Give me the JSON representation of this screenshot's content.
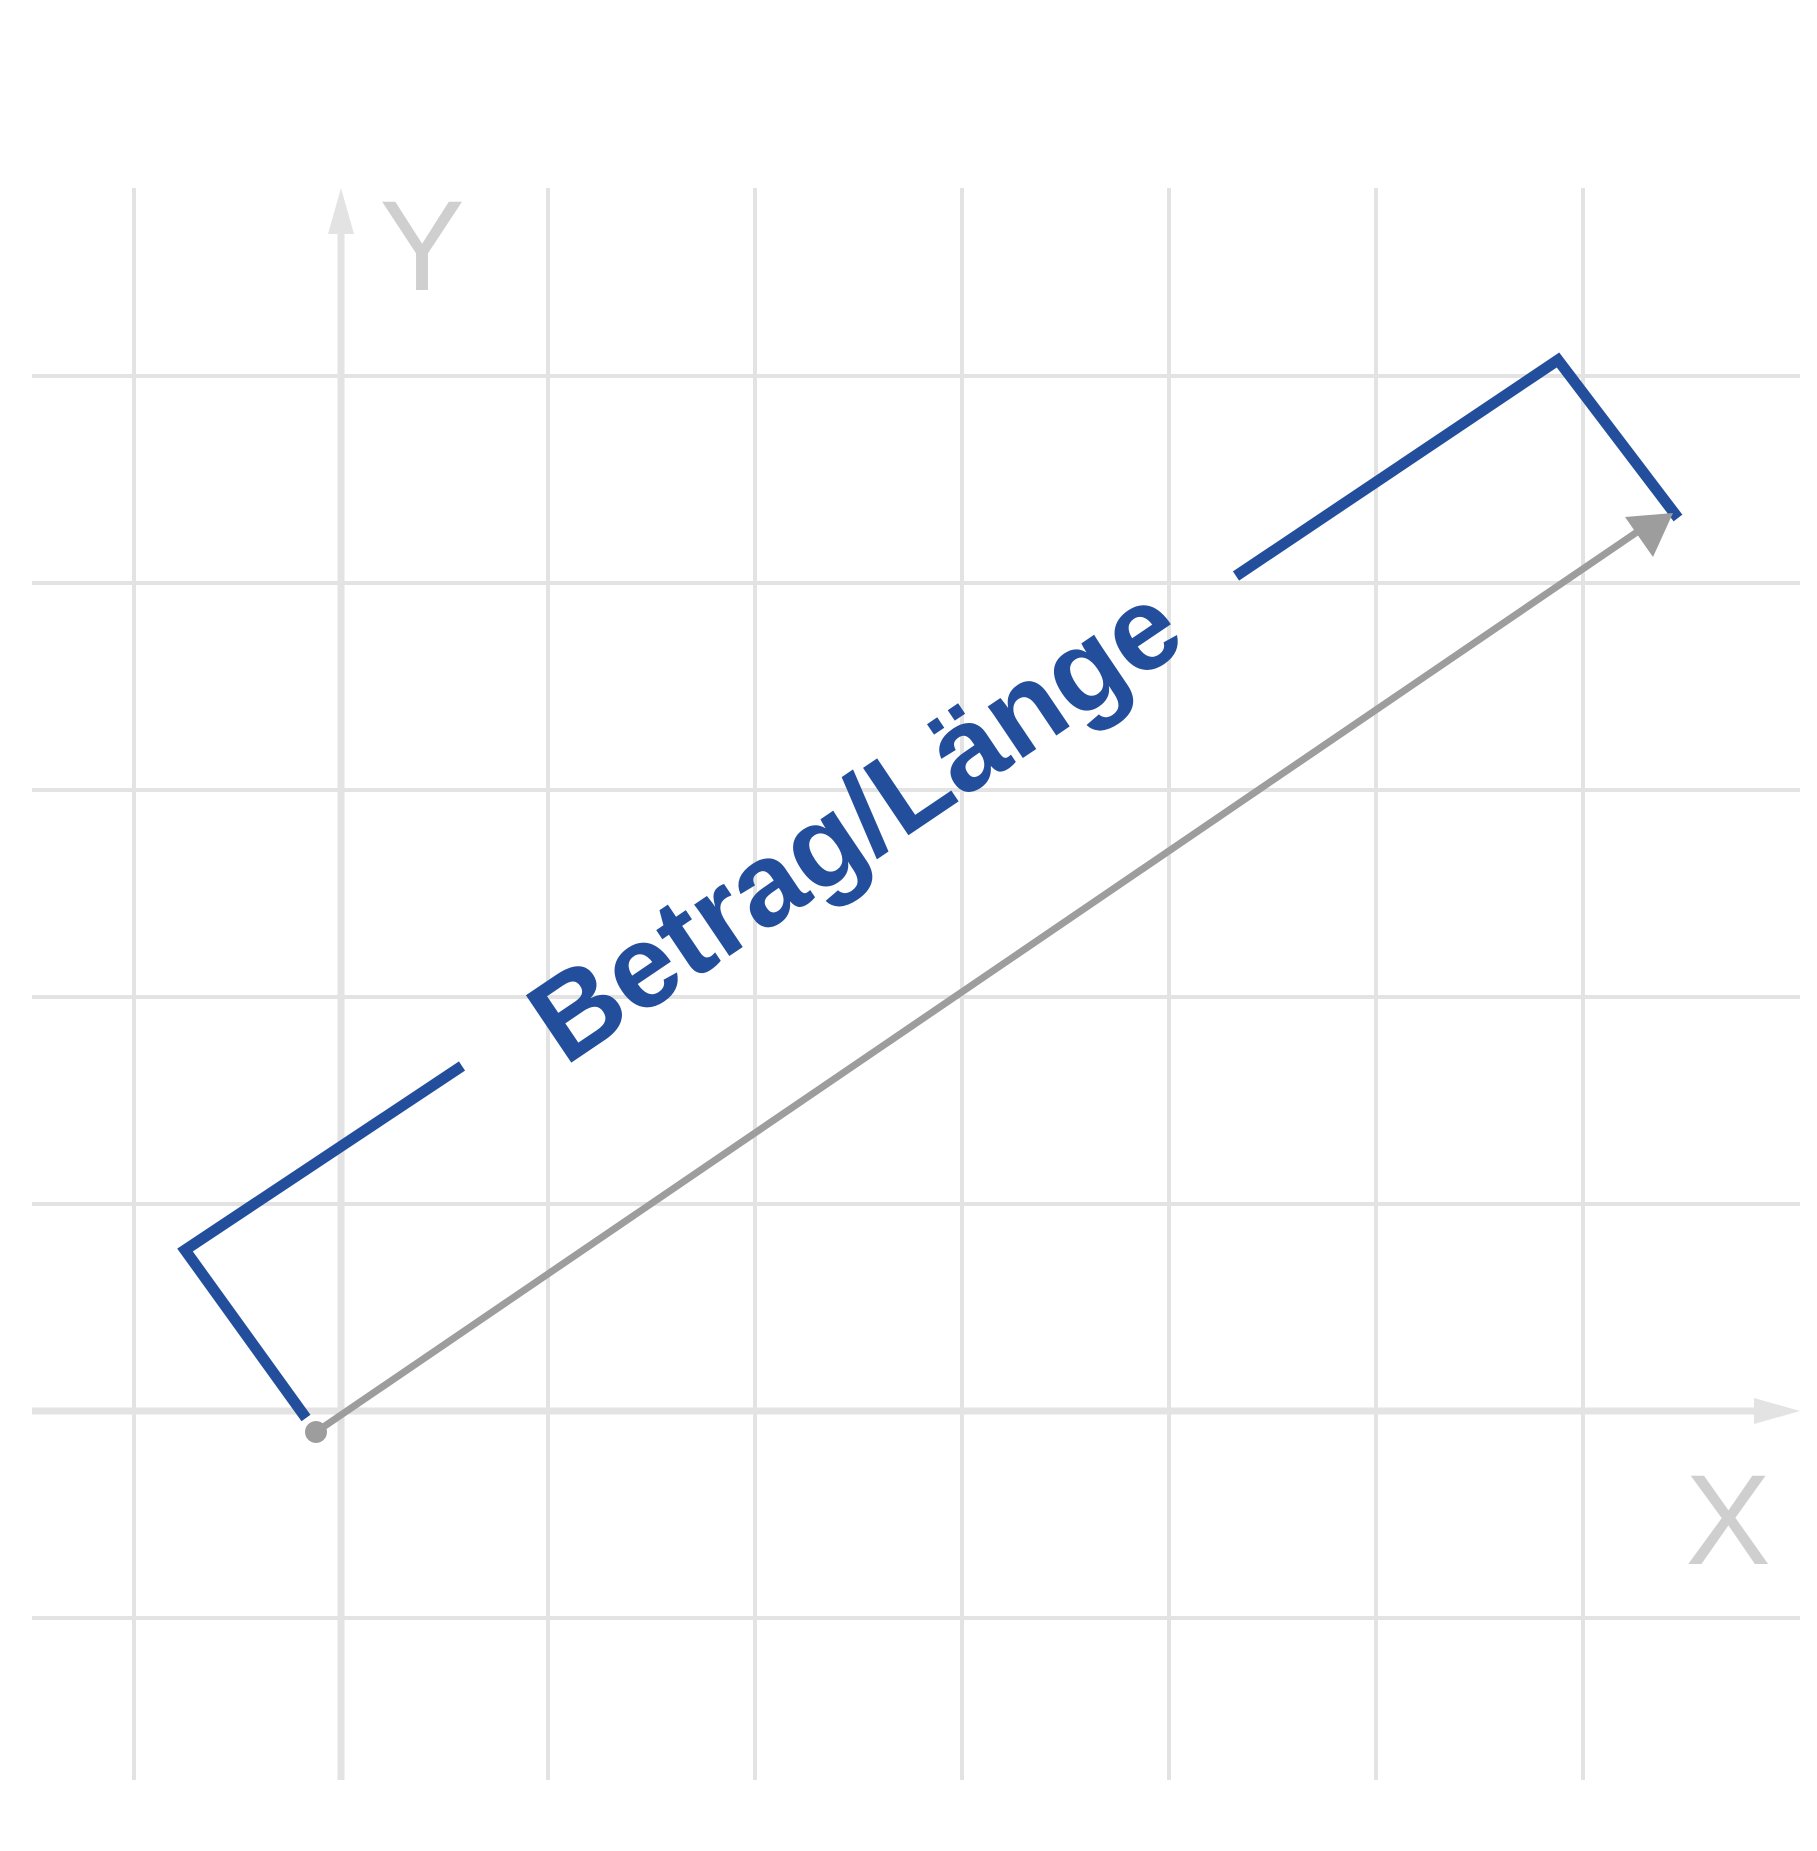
{
  "colors": {
    "background": "#ffffff",
    "grid": "#e3e3e3",
    "axis_label": "#cfcfcf",
    "bracket": "#234e9c",
    "vector": "#9d9d9d",
    "label": "#234e9c"
  },
  "axes": {
    "x_label": "X",
    "y_label": "Y"
  },
  "magnitude_label": "Betrag/Länge"
}
